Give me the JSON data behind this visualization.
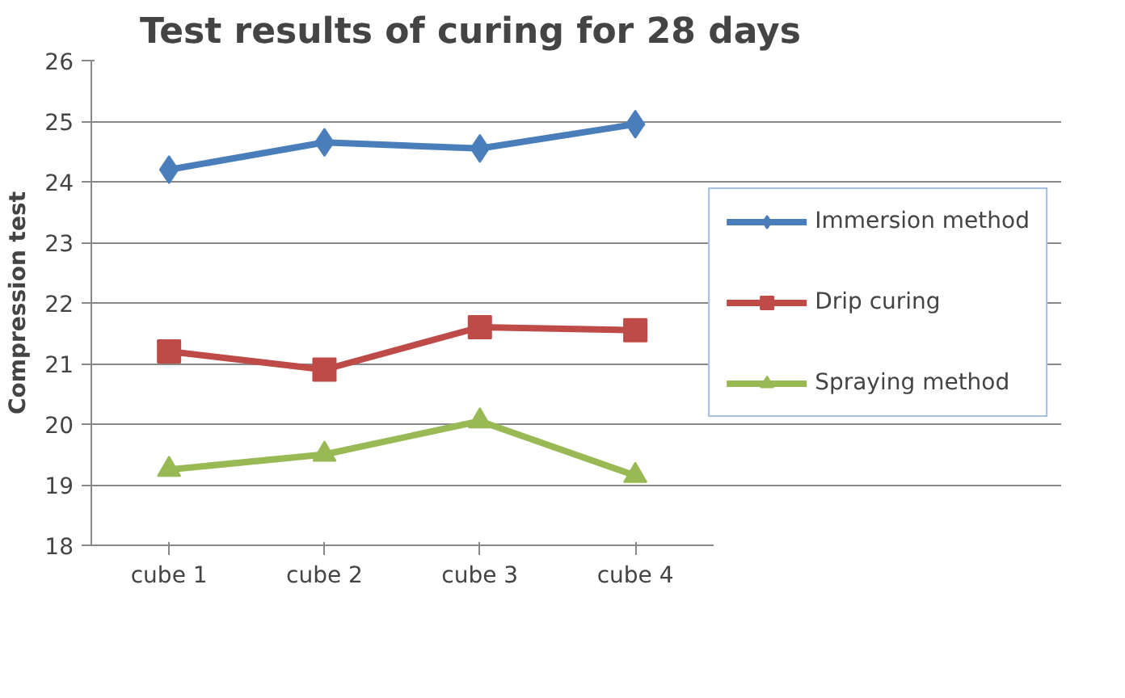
{
  "chart_data": {
    "type": "line",
    "title": "Test results of curing for 28 days",
    "ylabel": "Compression test",
    "categories": [
      "cube 1",
      "cube 2",
      "cube 3",
      "cube 4"
    ],
    "series": [
      {
        "name": "Immersion method",
        "color": "#4a7ebb",
        "marker": "diamond",
        "values": [
          24.2,
          24.65,
          24.55,
          24.95
        ]
      },
      {
        "name": "Drip curing",
        "color": "#be4b48",
        "marker": "square",
        "values": [
          21.2,
          20.9,
          21.6,
          21.55
        ]
      },
      {
        "name": "Spraying method",
        "color": "#98b954",
        "marker": "triangle",
        "values": [
          19.25,
          19.5,
          20.05,
          19.15
        ]
      }
    ],
    "ylim": [
      18,
      26
    ],
    "yticks": [
      18,
      19,
      20,
      21,
      22,
      23,
      24,
      25,
      26
    ],
    "grid": "y",
    "legend": "right",
    "line_style": "solid"
  }
}
